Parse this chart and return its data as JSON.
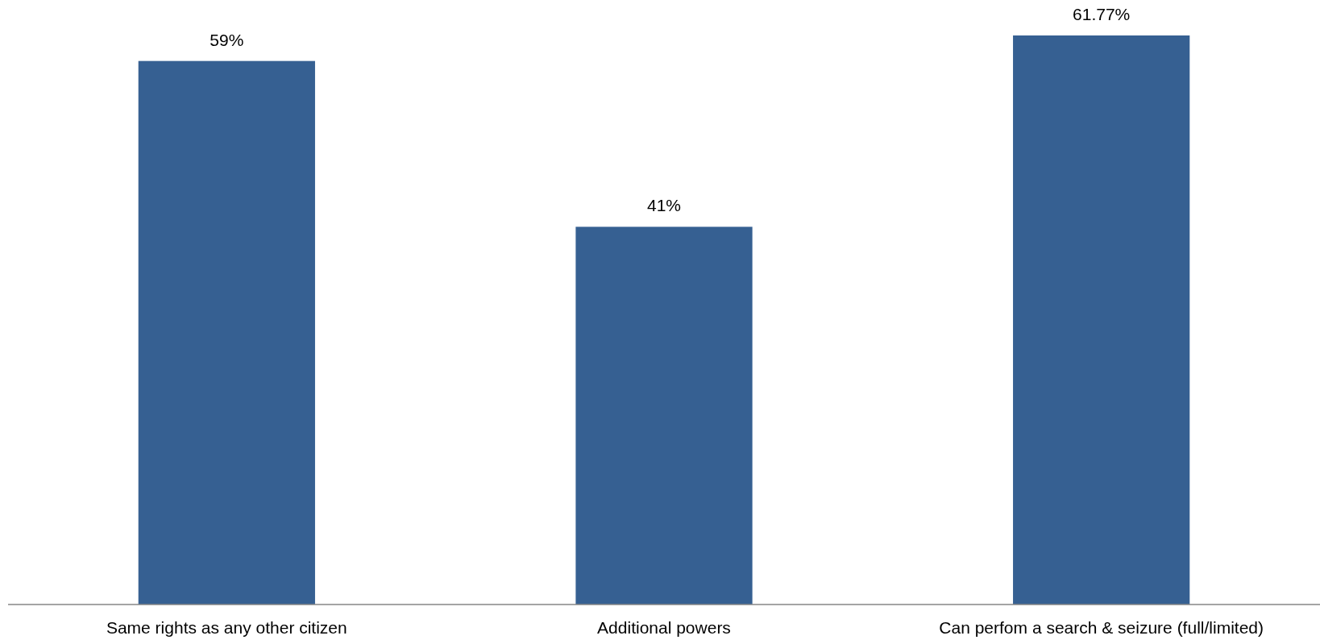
{
  "chart_data": {
    "type": "bar",
    "categories": [
      "Same rights as any other citizen",
      "Additional powers",
      "Can perfom a search & seizure (full/limited)"
    ],
    "values": [
      59,
      41,
      61.77
    ],
    "value_labels": [
      "59%",
      "41%",
      "61.77%"
    ],
    "color": "#366092"
  }
}
